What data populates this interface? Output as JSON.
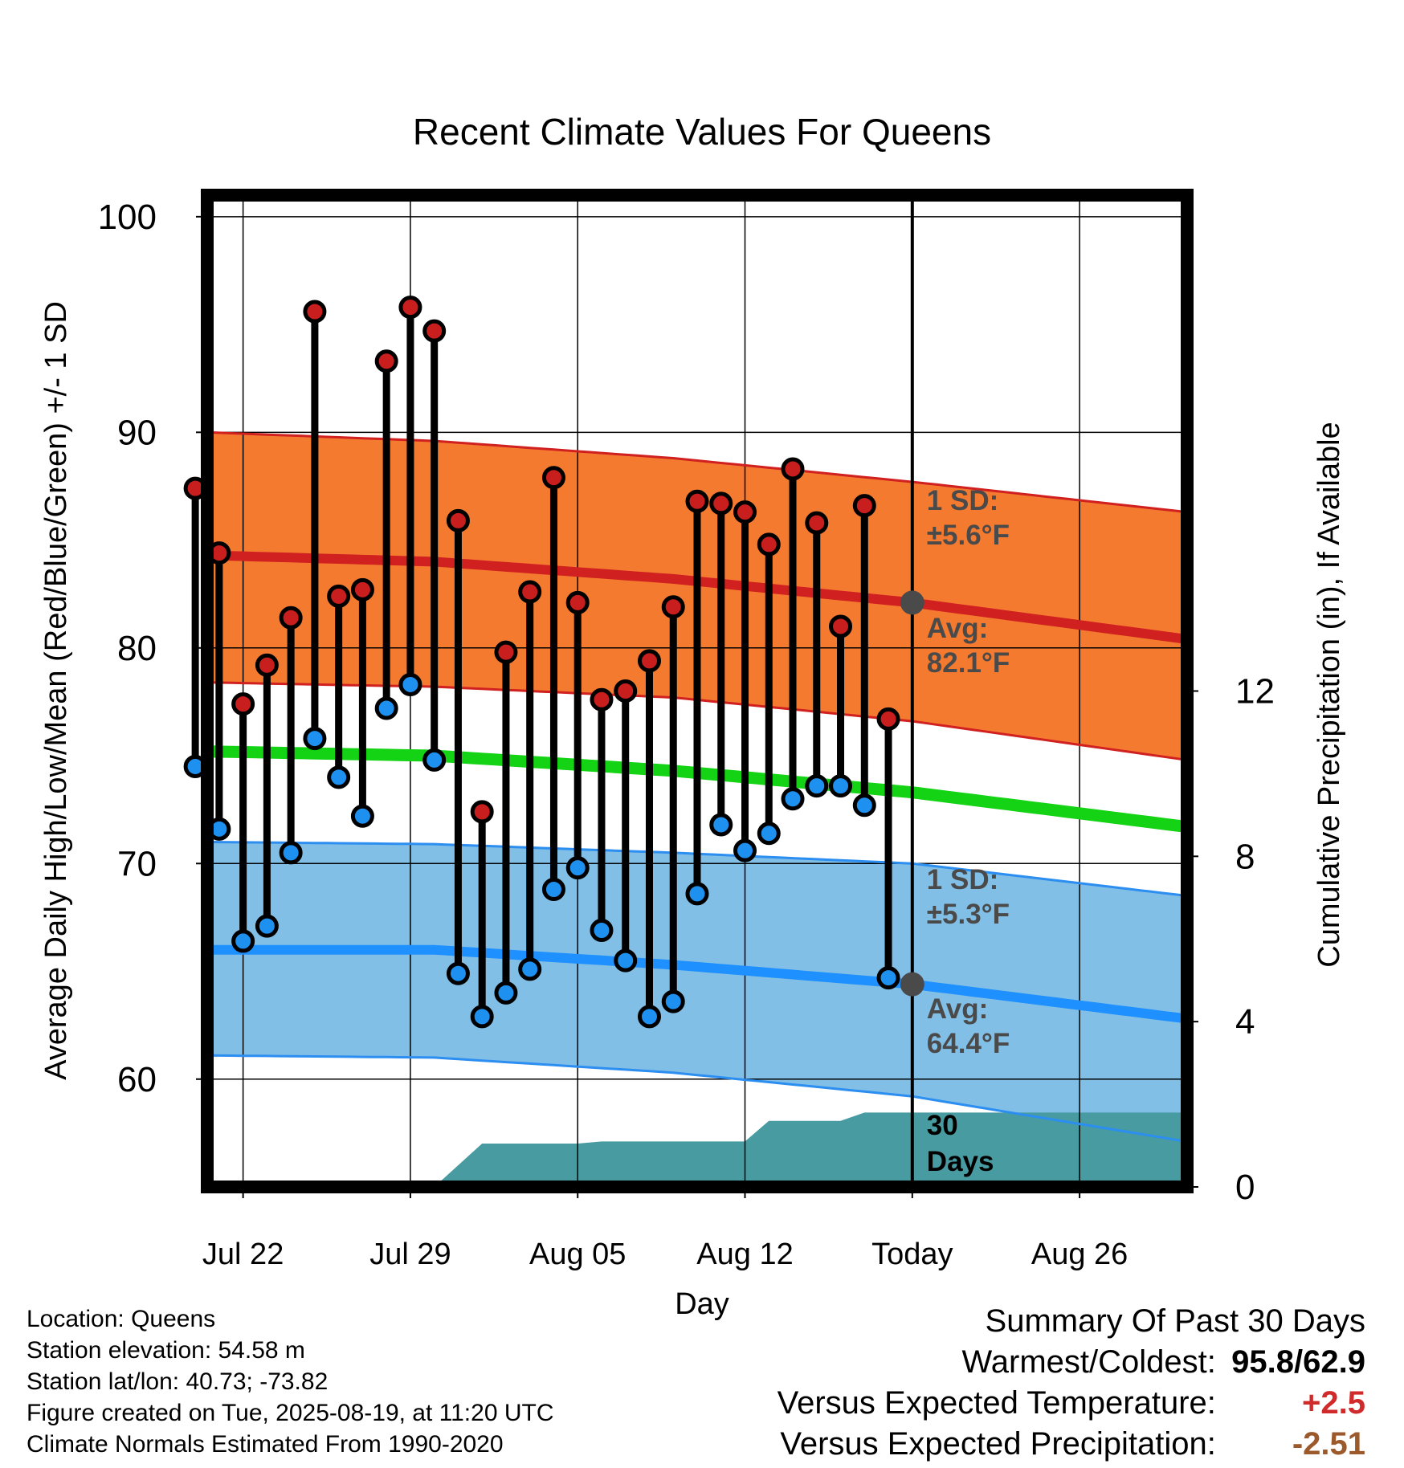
{
  "chart_data": {
    "type": "line",
    "title": "Recent Climate Values For Queens",
    "xlabel": "Day",
    "ylabel": "Average Daily High/Low/Mean (Red/Blue/Green) +/- 1 SD",
    "y2label": "Cumulative Precipitation (in), If Available",
    "ylim": [
      55,
      101
    ],
    "y2lim": [
      0,
      24
    ],
    "y_ticks": [
      "60",
      "70",
      "80",
      "90",
      "100"
    ],
    "y2_ticks": [
      "0",
      "4",
      "8",
      "12"
    ],
    "x_range_days": [
      -29.5,
      11.5
    ],
    "x_ticks": [
      {
        "day": -28,
        "label": "Jul 22"
      },
      {
        "day": -21,
        "label": "Jul 29"
      },
      {
        "day": -14,
        "label": "Aug 05"
      },
      {
        "day": -7,
        "label": "Aug 12"
      },
      {
        "day": 0,
        "label": "Today"
      },
      {
        "day": 7,
        "label": "Aug 26"
      }
    ],
    "grid": true,
    "today_label": "Today",
    "days": [
      -30,
      -29,
      -28,
      -27,
      -26,
      -25,
      -24,
      -23,
      -22,
      -21,
      -20,
      -19,
      -18,
      -17,
      -16,
      -15,
      -14,
      -13,
      -12,
      -11,
      -10,
      -9,
      -8,
      -7,
      -6,
      -5,
      -4,
      -3,
      -2,
      -1
    ],
    "observed_high": [
      87.4,
      84.4,
      77.4,
      79.2,
      81.4,
      95.6,
      82.4,
      82.7,
      93.3,
      95.8,
      94.7,
      85.9,
      72.4,
      79.8,
      82.6,
      87.9,
      82.1,
      77.6,
      78.0,
      79.4,
      81.9,
      86.8,
      86.7,
      86.3,
      84.8,
      88.3,
      85.8,
      81.0,
      86.6,
      76.7
    ],
    "observed_low": [
      74.5,
      71.6,
      66.4,
      67.1,
      70.5,
      75.8,
      74.0,
      72.2,
      77.2,
      78.3,
      74.8,
      64.9,
      62.9,
      64.0,
      65.1,
      68.8,
      69.8,
      66.9,
      65.5,
      62.9,
      63.6,
      68.6,
      71.8,
      70.6,
      71.4,
      73.0,
      73.6,
      73.6,
      72.7,
      64.7
    ],
    "normal_high": {
      "days": [
        -29.5,
        -20,
        -10,
        0,
        11.5
      ],
      "avg": [
        84.3,
        84.0,
        83.2,
        82.1,
        80.4
      ],
      "upper": [
        90.0,
        89.6,
        88.8,
        87.7,
        86.3
      ],
      "lower": [
        78.4,
        78.2,
        77.7,
        76.6,
        74.8
      ]
    },
    "normal_low": {
      "days": [
        -29.5,
        -20,
        -10,
        0,
        11.5
      ],
      "avg": [
        66.0,
        66.0,
        65.3,
        64.4,
        62.8
      ],
      "upper": [
        71.0,
        70.9,
        70.5,
        70.0,
        68.5
      ],
      "lower": [
        61.1,
        61.0,
        60.3,
        59.2,
        57.1
      ]
    },
    "normal_mean": {
      "days": [
        -29.5,
        -20,
        -10,
        0,
        11.5
      ],
      "avg": [
        75.2,
        75.0,
        74.3,
        73.3,
        71.7
      ]
    },
    "cumulative_precip": {
      "days": [
        -30,
        -20,
        -18,
        -14,
        -13,
        -7,
        -6,
        -3,
        -2,
        0,
        11.5
      ],
      "values": [
        0,
        0,
        1.05,
        1.05,
        1.1,
        1.1,
        1.6,
        1.6,
        1.8,
        1.8,
        1.8
      ]
    },
    "annotations": {
      "high_sd_label": "1 SD:",
      "high_sd_value": "±5.6°F",
      "high_avg_label": "Avg:",
      "high_avg_value": "82.1°F",
      "low_sd_label": "1 SD:",
      "low_sd_value": "±5.3°F",
      "low_avg_label": "Avg:",
      "low_avg_value": "64.4°F",
      "days_label_1": "30",
      "days_label_2": "Days"
    },
    "colors": {
      "high_band": "#f47a30",
      "high_line": "#d02020",
      "low_band": "#82bfe6",
      "low_line": "#1e90ff",
      "low_edge": "#2b8ef0",
      "mean_line": "#14d214",
      "precip": "#479ba1",
      "high_marker": "#c81e1e",
      "low_marker": "#1e90f0",
      "today_marker": "#4a4a4a",
      "annotation_text": "#4a4a4a"
    }
  },
  "info": {
    "location": "Location: Queens",
    "elevation": "Station elevation: 54.58 m",
    "latlon": "Station lat/lon: 40.73; -73.82",
    "created": "Figure created on Tue, 2025-08-19, at 11:20 UTC",
    "normals": "Climate Normals Estimated From 1990-2020"
  },
  "summary": {
    "heading": "Summary Of Past 30 Days",
    "warm_cold_label": "Warmest/Coldest:",
    "warmest": "95.8",
    "separator": "/",
    "coldest": "62.9",
    "temp_label": "Versus Expected Temperature:",
    "temp_value": "+2.5",
    "temp_color": "#d02a2a",
    "precip_label": "Versus Expected Precipitation:",
    "precip_value": "-2.51",
    "precip_color": "#9c5a2c"
  }
}
